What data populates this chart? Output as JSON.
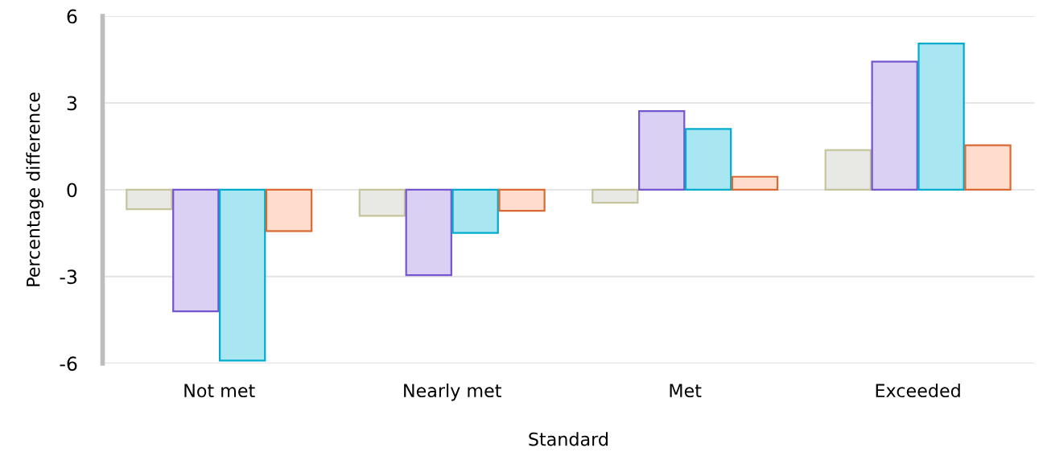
{
  "chart_data": {
    "type": "bar",
    "xlabel": "Standard",
    "ylabel": "Percentage difference",
    "categories": [
      "Not met",
      "Nearly met",
      "Met",
      "Exceeded"
    ],
    "series": [
      {
        "color": "#e8e8e4",
        "values": [
          -0.67,
          -0.9,
          -0.45,
          1.37
        ]
      },
      {
        "color": "#d9d0f3",
        "values": [
          -4.2,
          -2.95,
          2.72,
          4.43
        ]
      },
      {
        "color": "#a8e6f2",
        "values": [
          -5.9,
          -1.49,
          2.1,
          5.05
        ]
      },
      {
        "color": "#ffdccb",
        "values": [
          -1.43,
          -0.73,
          0.45,
          1.54
        ]
      }
    ],
    "ylim": [
      -6,
      6
    ],
    "yticks": [
      -6,
      -3,
      0,
      3,
      6
    ],
    "grid": "y",
    "legend": false
  }
}
